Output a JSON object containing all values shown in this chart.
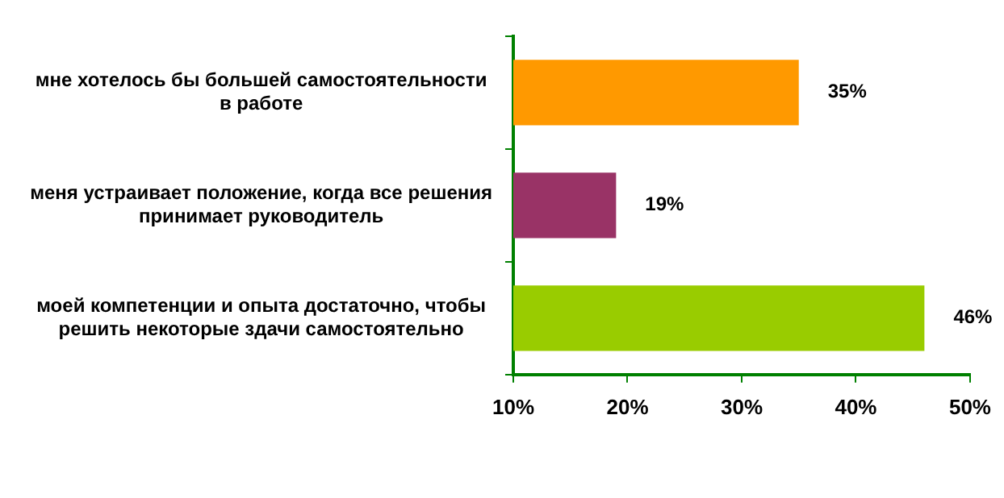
{
  "chart_data": {
    "type": "bar",
    "orientation": "horizontal",
    "categories": [
      "мне хотелось бы большей самостоятельности в работе",
      "меня устраивает положение, когда все решения принимает руководитель",
      "моей компетенции и опыта достаточно, чтобы решить некоторые здачи самостоятельно"
    ],
    "values": [
      35,
      19,
      46
    ],
    "colors": [
      "#ff9900",
      "#993366",
      "#99cc00"
    ],
    "value_labels": [
      "35%",
      "19%",
      "46%"
    ],
    "xlim": [
      10,
      50
    ],
    "xticks": [
      {
        "value": 10,
        "label": "10%"
      },
      {
        "value": 20,
        "label": "20%"
      },
      {
        "value": 30,
        "label": "30%"
      },
      {
        "value": 40,
        "label": "40%"
      },
      {
        "value": 50,
        "label": "50%"
      }
    ],
    "grid": false,
    "legend": false
  }
}
